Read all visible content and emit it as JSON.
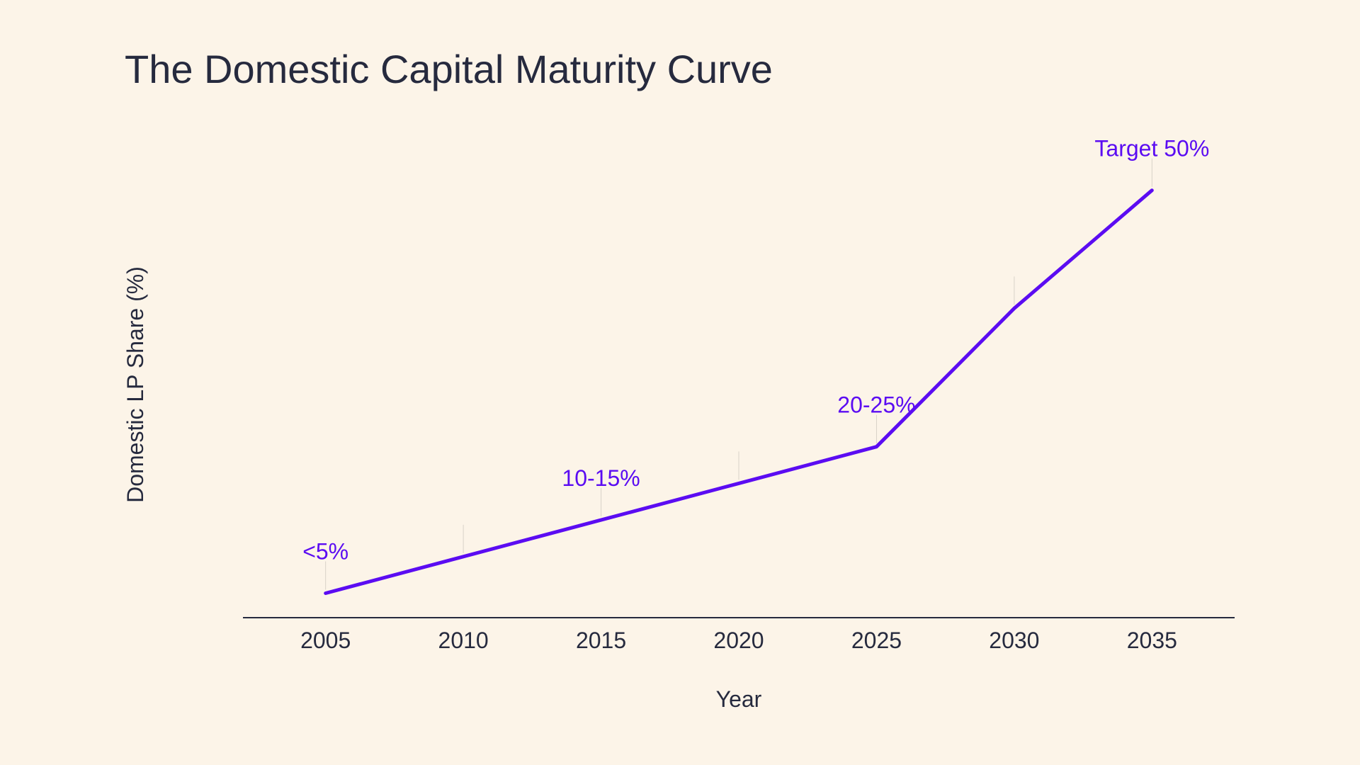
{
  "chart_data": {
    "type": "line",
    "title": "The Domestic Capital Maturity Curve",
    "xlabel": "Year",
    "ylabel": "Domestic LP Share (%)",
    "x": [
      2005,
      2010,
      2015,
      2020,
      2025,
      2030,
      2035
    ],
    "xlim": [
      2002,
      2038
    ],
    "ylim": [
      0,
      55
    ],
    "series": [
      {
        "name": "Domestic LP Share",
        "color": "#5B0CF2",
        "values": [
          3,
          7.5,
          12,
          16.5,
          21,
          38,
          52.5
        ]
      }
    ],
    "annotations": [
      {
        "x": 2005,
        "y": 3,
        "text": "<5%"
      },
      {
        "x": 2015,
        "y": 12,
        "text": "10-15%"
      },
      {
        "x": 2025,
        "y": 21,
        "text": "20-25%"
      },
      {
        "x": 2035,
        "y": 52.5,
        "text": "Target 50%"
      }
    ],
    "ticks": [
      2005,
      2010,
      2015,
      2020,
      2025,
      2030,
      2035
    ],
    "grid": false,
    "axis_color": "#262A3E",
    "accent_color": "#5B0CF2"
  }
}
